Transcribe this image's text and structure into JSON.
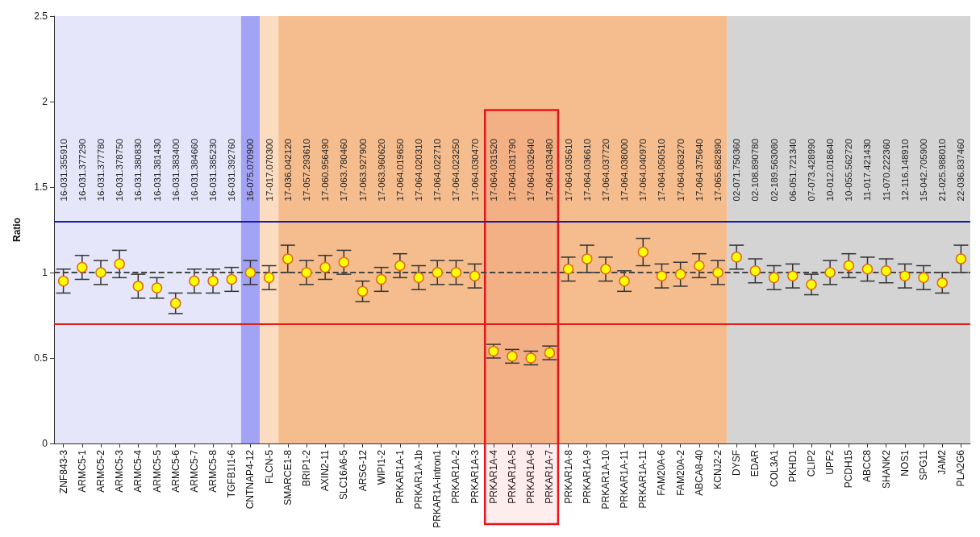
{
  "chart_data": {
    "type": "scatter",
    "ylabel": "Ratio",
    "marker": "circle",
    "grid": false,
    "color": "#ffff00",
    "categories": [
      "ZNF843-3",
      "ARMC5-1",
      "ARMC5-2",
      "ARMC5-3",
      "ARMC5-4",
      "ARMC5-5",
      "ARMC5-6",
      "ARMC5-7",
      "ARMC5-8",
      "TGFB1I1-6",
      "CNTNAP4-12",
      "FLCN-5",
      "SMARCE1-8",
      "BRIP1-2",
      "AXIN2-11",
      "SLC16A6-5",
      "ARSG-12",
      "WIPI1-2",
      "PRKAR1A-1",
      "PRKAR1A-1b",
      "PRKAR1A-intron1",
      "PRKAR1A-2",
      "PRKAR1A-3",
      "PRKAR1A-4",
      "PRKAR1A-5",
      "PRKAR1A-6",
      "PRKAR1A-7",
      "PRKAR1A-8",
      "PRKAR1A-9",
      "PRKAR1A-10",
      "PRKAR1A-11",
      "PRKAR1A-11",
      "FAM20A-6",
      "FAM20A-2",
      "ABCA8-40",
      "KCNJ2-2",
      "DYSF",
      "EDAR",
      "COL3A1",
      "PKHD1",
      "CLIP2",
      "UPF2",
      "PCDH15",
      "ABCC8",
      "SHANK2",
      "NOS1",
      "SPG11",
      "JAM2",
      "PLA2G6"
    ],
    "values": [
      0.95,
      1.03,
      1.0,
      1.05,
      0.92,
      0.91,
      0.82,
      0.95,
      0.95,
      0.96,
      1.0,
      0.97,
      1.08,
      1.0,
      1.03,
      1.06,
      0.89,
      0.96,
      1.04,
      0.97,
      1.0,
      1.0,
      0.98,
      0.54,
      0.51,
      0.5,
      0.53,
      1.02,
      1.08,
      1.02,
      0.95,
      1.12,
      0.98,
      0.99,
      1.04,
      1.0,
      1.09,
      1.01,
      0.97,
      0.98,
      0.93,
      1.0,
      1.04,
      1.02,
      1.01,
      0.98,
      0.97,
      0.94,
      1.08
    ],
    "errors": [
      0.07,
      0.07,
      0.07,
      0.08,
      0.07,
      0.06,
      0.06,
      0.07,
      0.07,
      0.07,
      0.07,
      0.07,
      0.08,
      0.07,
      0.07,
      0.07,
      0.06,
      0.07,
      0.07,
      0.07,
      0.07,
      0.07,
      0.07,
      0.04,
      0.04,
      0.04,
      0.04,
      0.07,
      0.08,
      0.07,
      0.06,
      0.08,
      0.07,
      0.07,
      0.07,
      0.07,
      0.07,
      0.07,
      0.07,
      0.07,
      0.06,
      0.07,
      0.07,
      0.07,
      0.07,
      0.07,
      0.07,
      0.06,
      0.08
    ],
    "ylim": [
      0,
      2.5
    ],
    "yticks": [
      0,
      0.5,
      1,
      1.5,
      2,
      2.5
    ],
    "ref_lines": [
      {
        "axis": "y",
        "value": 1.3,
        "color": "#1a1aa6",
        "line_style": "solid"
      },
      {
        "axis": "y",
        "value": 0.7,
        "color": "#e0201c",
        "line_style": "solid"
      },
      {
        "axis": "y",
        "value": 1,
        "color": "#444444",
        "line_style": "dashed"
      }
    ],
    "bands": [
      {
        "axis": "x",
        "from": "ZNF843-3",
        "to": "TGFB1I1-6",
        "color": "#e6e6fa"
      },
      {
        "axis": "x",
        "from": "CNTNAP4-12",
        "to": "CNTNAP4-12",
        "color": "#a3a3f5"
      },
      {
        "axis": "x",
        "from": "FLCN-5",
        "to": "FLCN-5",
        "color": "#fbdcc0"
      },
      {
        "axis": "x",
        "from": "SMARCE1-8",
        "to": "KCNJ2-2",
        "color": "#f5bd8e"
      },
      {
        "axis": "x",
        "from": "DYSF",
        "to": "PLA2G6",
        "color": "#d4d4d4"
      },
      {
        "axis": "x",
        "from": "PRKAR1A-4",
        "to": "PRKAR1A-7",
        "color": "#e8141c"
      }
    ],
    "annotations": [
      "16-031.355910",
      "16-031.377290",
      "16-031.377780",
      "16-031.378750",
      "16-031.380830",
      "16-031.381430",
      "16-031.383400",
      "16-031.384660",
      "16-031.385230",
      "16-031.392760",
      "16-075.070900",
      "17-017.070300",
      "17-036.042120",
      "17-057.293610",
      "17-060.956490",
      "17-063.780460",
      "17-063.927900",
      "17-063.960620",
      "17-064.019650",
      "17-064.020310",
      "17-064.022710",
      "17-064.023250",
      "17-064.030470",
      "17-064.031520",
      "17-064.031790",
      "17-064.032640",
      "17-064.033480",
      "17-064.035610",
      "17-064.036610",
      "17-064.037720",
      "17-064.038000",
      "17-064.040970",
      "17-064.050510",
      "17-064.063270",
      "17-064.375640",
      "17-065.682890",
      "02-071.750360",
      "02-108.890780",
      "02-189.563080",
      "06-051.721340",
      "07-073.428990",
      "10-012.018640",
      "10-055.562720",
      "11-017.421430",
      "11-070.222360",
      "12-116.148910",
      "15-042.705900",
      "21-025.988010",
      "22-036.837460"
    ]
  }
}
